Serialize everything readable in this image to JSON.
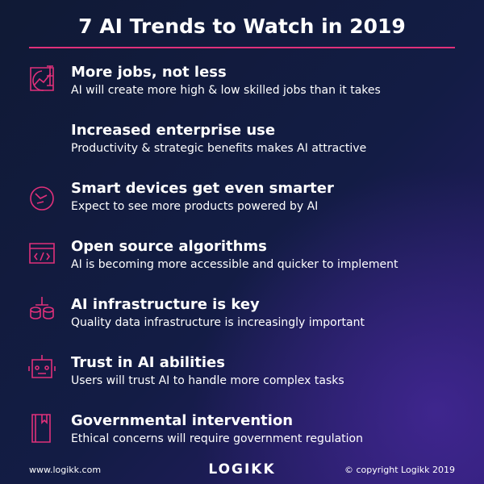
{
  "header": {
    "title": "7 AI Trends to Watch in 2019"
  },
  "items": [
    {
      "heading": "More jobs, not less",
      "description": "AI will create more high & low skilled jobs than it takes"
    },
    {
      "heading": "Increased enterprise use",
      "description": "Productivity & strategic benefits makes AI attractive"
    },
    {
      "heading": "Smart devices get even smarter",
      "description": "Expect to see more products powered by AI"
    },
    {
      "heading": "Open source algorithms",
      "description": "AI is becoming more accessible and quicker to implement"
    },
    {
      "heading": "AI infrastructure is key",
      "description": "Quality data infrastructure is increasingly important"
    },
    {
      "heading": "Trust in AI abilities",
      "description": "Users will trust AI to handle more complex tasks"
    },
    {
      "heading": "Governmental intervention",
      "description": "Ethical concerns will require government regulation"
    }
  ],
  "footer": {
    "website": "www.logikk.com",
    "logo": "LOGIKK",
    "copyright": "© copyright Logikk 2019"
  }
}
